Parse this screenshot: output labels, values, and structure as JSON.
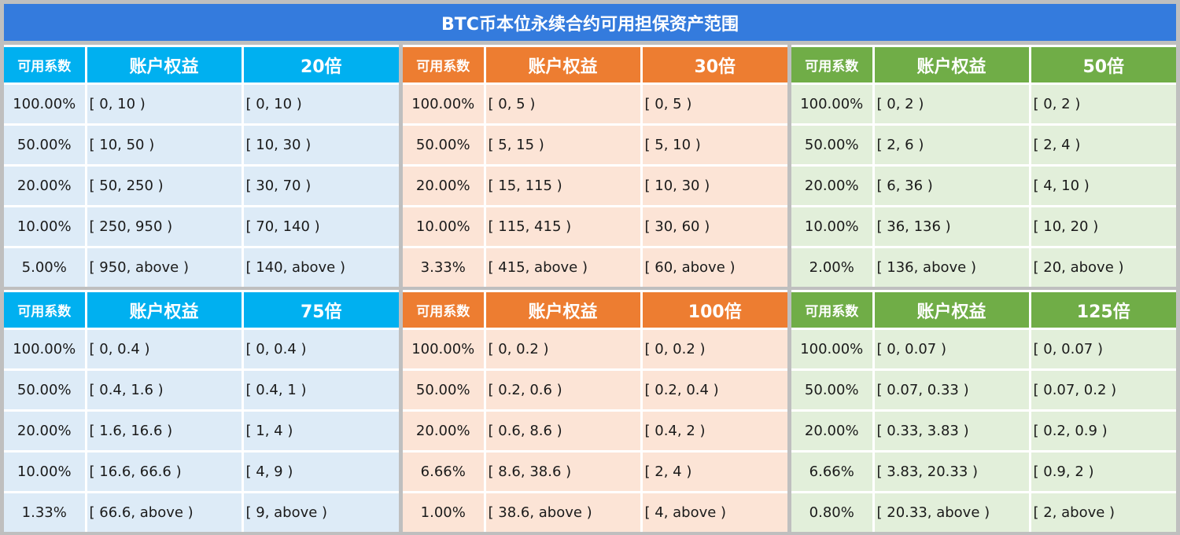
{
  "title": "BTC币本位永续合约可用担保资产范围",
  "colors": {
    "title_bar": "#347bdd",
    "blue_header": "#00b0f0",
    "blue_body": "#ddebf7",
    "orange_header": "#ed7d31",
    "orange_body": "#fce4d6",
    "green_header": "#70ad47",
    "green_body": "#e2efda",
    "background": "#bfbfbf"
  },
  "panels": [
    {
      "headers": [
        "可用系数",
        "账户权益",
        "20倍"
      ],
      "rows": [
        [
          "100.00%",
          "[ 0, 10 )",
          "[ 0, 10 )"
        ],
        [
          "50.00%",
          "[ 10, 50 )",
          "[ 10, 30 )"
        ],
        [
          "20.00%",
          "[ 50, 250 )",
          "[ 30, 70 )"
        ],
        [
          "10.00%",
          "[ 250, 950 )",
          "[ 70, 140 )"
        ],
        [
          "5.00%",
          "[ 950, above )",
          "[ 140, above )"
        ]
      ]
    },
    {
      "headers": [
        "可用系数",
        "账户权益",
        "30倍"
      ],
      "rows": [
        [
          "100.00%",
          "[ 0, 5 )",
          "[ 0, 5 )"
        ],
        [
          "50.00%",
          "[ 5, 15 )",
          "[ 5, 10 )"
        ],
        [
          "20.00%",
          "[ 15, 115 )",
          "[ 10, 30 )"
        ],
        [
          "10.00%",
          "[ 115, 415 )",
          "[ 30, 60 )"
        ],
        [
          "3.33%",
          "[ 415, above )",
          "[ 60, above )"
        ]
      ]
    },
    {
      "headers": [
        "可用系数",
        "账户权益",
        "50倍"
      ],
      "rows": [
        [
          "100.00%",
          "[ 0, 2 )",
          "[ 0, 2 )"
        ],
        [
          "50.00%",
          "[ 2, 6 )",
          "[ 2, 4 )"
        ],
        [
          "20.00%",
          "[ 6, 36 )",
          "[ 4, 10 )"
        ],
        [
          "10.00%",
          "[ 36, 136 )",
          "[ 10, 20 )"
        ],
        [
          "2.00%",
          "[ 136, above )",
          "[ 20, above )"
        ]
      ]
    },
    {
      "headers": [
        "可用系数",
        "账户权益",
        "75倍"
      ],
      "rows": [
        [
          "100.00%",
          "[ 0, 0.4 )",
          "[ 0, 0.4 )"
        ],
        [
          "50.00%",
          "[ 0.4, 1.6 )",
          "[ 0.4, 1 )"
        ],
        [
          "20.00%",
          "[ 1.6, 16.6 )",
          "[ 1, 4 )"
        ],
        [
          "10.00%",
          "[ 16.6, 66.6 )",
          "[ 4, 9 )"
        ],
        [
          "1.33%",
          "[ 66.6, above )",
          "[ 9, above )"
        ]
      ]
    },
    {
      "headers": [
        "可用系数",
        "账户权益",
        "100倍"
      ],
      "rows": [
        [
          "100.00%",
          "[ 0, 0.2 )",
          "[ 0, 0.2 )"
        ],
        [
          "50.00%",
          "[ 0.2, 0.6 )",
          "[ 0.2, 0.4 )"
        ],
        [
          "20.00%",
          "[ 0.6, 8.6 )",
          "[ 0.4, 2 )"
        ],
        [
          "6.66%",
          "[ 8.6, 38.6 )",
          "[ 2, 4 )"
        ],
        [
          "1.00%",
          "[ 38.6, above )",
          "[ 4, above )"
        ]
      ]
    },
    {
      "headers": [
        "可用系数",
        "账户权益",
        "125倍"
      ],
      "rows": [
        [
          "100.00%",
          "[ 0, 0.07 )",
          "[ 0, 0.07 )"
        ],
        [
          "50.00%",
          "[ 0.07, 0.33 )",
          "[ 0.07, 0.2 )"
        ],
        [
          "20.00%",
          "[ 0.33, 3.83 )",
          "[ 0.2, 0.9 )"
        ],
        [
          "6.66%",
          "[ 3.83, 20.33 )",
          "[ 0.9, 2 )"
        ],
        [
          "0.80%",
          "[ 20.33, above )",
          "[ 2, above )"
        ]
      ]
    }
  ]
}
